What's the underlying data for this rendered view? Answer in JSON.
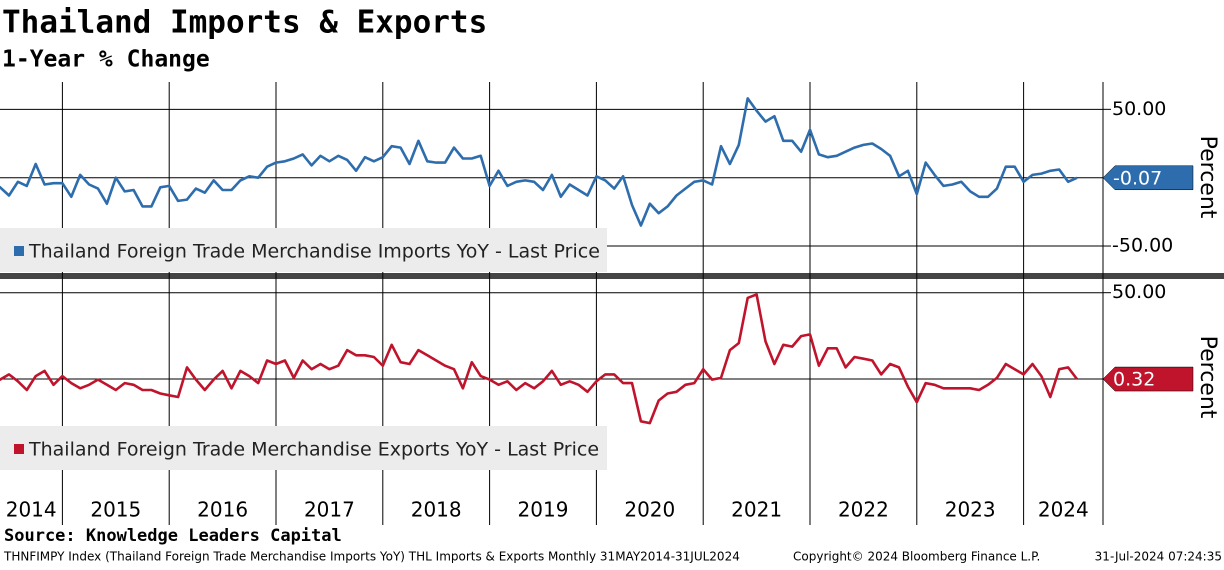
{
  "header": {
    "title": "Thailand Imports & Exports",
    "subtitle": "1-Year % Change"
  },
  "x_axis_labels": [
    "2014",
    "2015",
    "2016",
    "2017",
    "2018",
    "2019",
    "2020",
    "2021",
    "2022",
    "2023",
    "2024"
  ],
  "chart_data": [
    {
      "type": "line",
      "ylabel": "Percent",
      "grid": true,
      "ylim": [
        -69,
        70
      ],
      "yticks": [
        {
          "value": 50,
          "label": "50.00"
        },
        {
          "value": -50,
          "label": "-50.00"
        }
      ],
      "series": [
        {
          "name": "Thailand Foreign Trade Merchandise Imports YoY - Last Price",
          "color": "#2e6dad",
          "values": [
            -5,
            -7,
            -13,
            -3,
            -6,
            10,
            -5,
            -4,
            -4,
            -14,
            2,
            -5,
            -8,
            -19,
            0,
            -10,
            -9,
            -21,
            -21,
            -7,
            -6,
            -17,
            -16,
            -8,
            -11,
            -2,
            -9,
            -9,
            -2,
            1,
            0,
            8,
            11,
            12,
            14,
            17,
            9,
            16,
            12,
            16,
            13,
            5,
            15,
            12,
            15,
            23,
            22,
            10,
            27,
            12,
            11,
            11,
            22,
            14,
            14,
            16,
            -6,
            5,
            -6,
            -3,
            -2,
            -3,
            -9,
            2,
            -14,
            -5,
            -9,
            -13,
            1,
            -2,
            -8,
            1,
            -20,
            -35,
            -19,
            -26,
            -21,
            -13,
            -8,
            -3,
            -2,
            -5,
            23,
            10,
            24,
            58,
            49,
            41,
            45,
            27,
            27,
            19,
            35,
            17,
            15,
            16,
            19,
            22,
            24,
            25,
            21,
            16,
            1,
            5,
            -12,
            11,
            2,
            -6,
            -5,
            -3,
            -10,
            -14,
            -14,
            -8,
            8,
            8,
            -3,
            2,
            3,
            5,
            6,
            -3,
            -0.07
          ]
        }
      ]
    },
    {
      "type": "line",
      "ylabel": "Percent",
      "grid": true,
      "ylim": [
        -52,
        55
      ],
      "yticks": [
        {
          "value": 50,
          "label": "50.00"
        }
      ],
      "series": [
        {
          "name": "Thailand Foreign Trade Merchandise Exports YoY - Last Price",
          "color": "#c0142d",
          "values": [
            -1,
            0,
            3,
            -1,
            -6,
            2,
            5,
            -3,
            2,
            -2,
            -5,
            -3,
            0,
            -3,
            -6,
            -2,
            -3,
            -6,
            -6,
            -8,
            -9,
            -10,
            7,
            0,
            -6,
            0,
            5,
            -5,
            5,
            2,
            -2,
            11,
            9,
            11,
            1,
            11,
            6,
            9,
            6,
            8,
            17,
            14,
            14,
            13,
            8,
            20,
            10,
            9,
            17,
            14,
            11,
            8,
            6,
            -5,
            10,
            2,
            0,
            -3,
            -1,
            -6,
            -2,
            -5,
            -1,
            5,
            -3,
            -1,
            -3,
            -7,
            -1,
            3,
            3,
            -2,
            -2,
            -24,
            -25,
            -12,
            -8,
            -7,
            -3,
            -2,
            6,
            0,
            1,
            17,
            21,
            47,
            49,
            22,
            9,
            20,
            19,
            25,
            26,
            8,
            18,
            18,
            7,
            13,
            12,
            11,
            3,
            9,
            7,
            -4,
            -13,
            -2,
            -3,
            -5,
            -5,
            -5,
            -5,
            -6,
            -3,
            1,
            9,
            6,
            3,
            9,
            2,
            -10,
            6,
            7,
            0.32
          ]
        }
      ]
    }
  ],
  "footer": {
    "source": "Source: Knowledge Leaders Capital",
    "description": "THNFIMPY Index (Thailand Foreign Trade Merchandise Imports YoY) THL Imports & Exports  Monthly 31MAY2014-31JUL2024",
    "copyright": "Copyright© 2024 Bloomberg Finance L.P.",
    "timestamp": "31-Jul-2024 07:24:35"
  }
}
